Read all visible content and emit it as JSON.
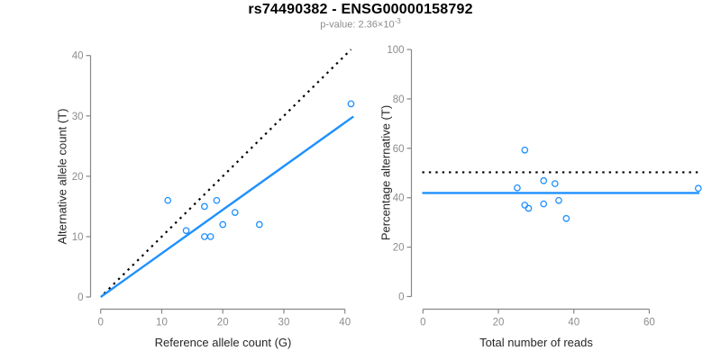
{
  "header": {
    "title": "rs74490382 - ENSG00000158792",
    "subtitle_prefix": "p-value: 2.36×10",
    "subtitle_exponent": "-3"
  },
  "colors": {
    "accent_blue": "#1E90FF",
    "line_black": "#000000",
    "axis_gray": "#888888",
    "tick_label_gray": "#8c8c8c",
    "axis_title_color": "#262626",
    "subtitle_gray": "#8c8c8c"
  },
  "chart_data": [
    {
      "type": "scatter",
      "title": "rs74490382 - ENSG00000158792",
      "subtitle": "p-value: 2.36×10^-3",
      "xlabel": "Reference allele count (G)",
      "ylabel": "Alternative allele count (T)",
      "xlim": [
        0,
        41.5
      ],
      "ylim": [
        0,
        41.5
      ],
      "xticks": [
        0,
        10,
        20,
        30,
        40
      ],
      "yticks": [
        0,
        10,
        20,
        30,
        40
      ],
      "grid": false,
      "legend": false,
      "marker": "open-circle",
      "points": [
        [
          11,
          16
        ],
        [
          14,
          11
        ],
        [
          17,
          10
        ],
        [
          17,
          15
        ],
        [
          18,
          10
        ],
        [
          19,
          16
        ],
        [
          20,
          12
        ],
        [
          22,
          14
        ],
        [
          26,
          12
        ],
        [
          41,
          32
        ]
      ],
      "lines": [
        {
          "name": "identity-line",
          "style": "dotted",
          "color": "#000000",
          "x1": 0.55,
          "y1": 0.55,
          "x2": 41.0,
          "y2": 41.0,
          "slope": 1
        },
        {
          "name": "fit-line",
          "style": "solid",
          "color": "#1E90FF",
          "x1": 0,
          "y1": 0,
          "x2": 41.4,
          "y2": 29.9,
          "slope": 0.722
        }
      ]
    },
    {
      "type": "scatter",
      "xlabel": "Total number of reads",
      "ylabel": "Percentage alternative (T)",
      "xlim": [
        0,
        73.5
      ],
      "ylim": [
        0,
        100
      ],
      "xticks": [
        0,
        20,
        40,
        60
      ],
      "yticks": [
        0,
        20,
        40,
        60,
        80,
        100
      ],
      "grid": false,
      "legend": false,
      "marker": "open-circle",
      "points": [
        [
          25,
          44.0
        ],
        [
          27,
          37.0
        ],
        [
          27,
          59.3
        ],
        [
          28,
          35.7
        ],
        [
          32,
          37.5
        ],
        [
          32,
          46.9
        ],
        [
          35,
          45.7
        ],
        [
          36,
          38.9
        ],
        [
          38,
          31.6
        ],
        [
          73,
          43.8
        ]
      ],
      "lines": [
        {
          "name": "expected-50pct-line",
          "style": "dotted",
          "color": "#000000",
          "x1": -0.2,
          "y1": 50.3,
          "x2": 73.3,
          "y2": 50.3
        },
        {
          "name": "mean-percentage-line",
          "style": "solid",
          "color": "#1E90FF",
          "x1": -0.2,
          "y1": 41.9,
          "x2": 73.3,
          "y2": 41.9
        }
      ]
    }
  ]
}
